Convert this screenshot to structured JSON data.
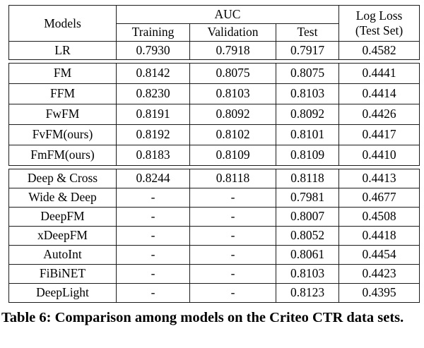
{
  "table": {
    "header": {
      "models": "Models",
      "auc": "AUC",
      "subcolumns": [
        "Training",
        "Validation",
        "Test"
      ],
      "logloss_line1": "Log Loss",
      "logloss_line2": "(Test Set)"
    },
    "sections": [
      {
        "rows": [
          {
            "model": "LR",
            "cells": [
              "0.7930",
              "0.7918",
              "0.7917",
              "0.4582"
            ]
          }
        ]
      },
      {
        "rows": [
          {
            "model": "FM",
            "cells": [
              "0.8142",
              "0.8075",
              "0.8075",
              "0.4441"
            ]
          },
          {
            "model": "FFM",
            "cells": [
              "0.8230",
              "0.8103",
              "0.8103",
              "0.4414"
            ]
          },
          {
            "model": "FwFM",
            "cells": [
              "0.8191",
              "0.8092",
              "0.8092",
              "0.4426"
            ]
          },
          {
            "model": "FvFM(ours)",
            "cells": [
              "0.8192",
              "0.8102",
              "0.8101",
              "0.4417"
            ]
          },
          {
            "model": "FmFM(ours)",
            "cells": [
              "0.8183",
              "0.8109",
              "0.8109",
              "0.4410"
            ]
          }
        ]
      },
      {
        "rows": [
          {
            "model": "Deep & Cross",
            "cells": [
              "0.8244",
              "0.8118",
              "0.8118",
              "0.4413"
            ]
          },
          {
            "model": "Wide & Deep",
            "cells": [
              "-",
              "-",
              "0.7981",
              "0.4677"
            ]
          },
          {
            "model": "DeepFM",
            "cells": [
              "-",
              "-",
              "0.8007",
              "0.4508"
            ]
          },
          {
            "model": "xDeepFM",
            "cells": [
              "-",
              "-",
              "0.8052",
              "0.4418"
            ]
          },
          {
            "model": "AutoInt",
            "cells": [
              "-",
              "-",
              "0.8061",
              "0.4454"
            ]
          },
          {
            "model": "FiBiNET",
            "cells": [
              "-",
              "-",
              "0.8103",
              "0.4423"
            ]
          },
          {
            "model": "DeepLight",
            "cells": [
              "-",
              "-",
              "0.8123",
              "0.4395"
            ]
          }
        ]
      }
    ]
  },
  "caption": "Table 6: Comparison among models on the Criteo CTR data sets.",
  "colors": {
    "background": "#ffffff",
    "text": "#000000",
    "border": "#1b1b1b"
  }
}
